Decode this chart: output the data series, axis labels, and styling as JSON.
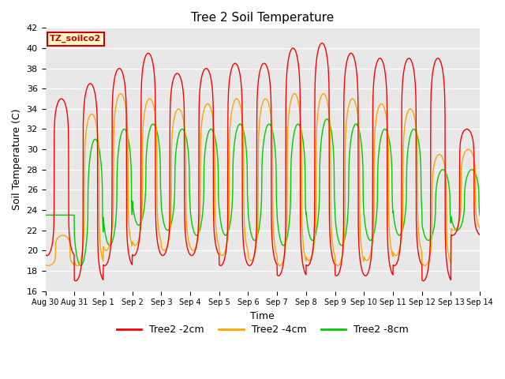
{
  "title": "Tree 2 Soil Temperature",
  "xlabel": "Time",
  "ylabel": "Soil Temperature (C)",
  "ylim": [
    16,
    42
  ],
  "yticks": [
    16,
    18,
    20,
    22,
    24,
    26,
    28,
    30,
    32,
    34,
    36,
    38,
    40,
    42
  ],
  "bg_color": "#e8e8e8",
  "fig_color": "#ffffff",
  "label_2cm": "Tree2 -2cm",
  "label_4cm": "Tree2 -4cm",
  "label_8cm": "Tree2 -8cm",
  "color_2cm": "#ff0000",
  "color_4cm": "#ffa500",
  "color_8cm": "#00cc00",
  "annotation_text": "TZ_soilco2",
  "annotation_bg": "#ffffcc",
  "annotation_edge": "#cc0000",
  "x_tick_labels": [
    "Aug 30",
    "Aug 31",
    "Sep 1",
    "Sep 2",
    "Sep 3",
    "Sep 4",
    "Sep 5",
    "Sep 6",
    "Sep 7",
    "Sep 8",
    "Sep 9",
    "Sep 10",
    "Sep 11",
    "Sep 12",
    "Sep 13",
    "Sep 14"
  ],
  "num_days": 15,
  "points_per_day": 144,
  "peak_2cm": [
    35.0,
    36.5,
    38.0,
    39.5,
    37.5,
    38.0,
    38.5,
    38.5,
    40.0,
    40.5,
    39.5,
    39.0,
    39.0,
    39.0,
    32.0
  ],
  "trough_2cm": [
    19.5,
    17.0,
    18.5,
    19.5,
    19.5,
    19.5,
    18.5,
    18.5,
    17.5,
    18.5,
    17.5,
    17.5,
    18.5,
    17.0,
    21.5
  ],
  "peak_4cm": [
    21.5,
    33.5,
    35.5,
    35.0,
    34.0,
    34.5,
    35.0,
    35.0,
    35.5,
    35.5,
    35.0,
    34.5,
    34.0,
    29.5,
    30.0
  ],
  "trough_4cm": [
    18.5,
    18.5,
    20.0,
    20.5,
    20.0,
    20.0,
    19.5,
    19.0,
    18.5,
    19.0,
    18.5,
    19.0,
    19.5,
    18.5,
    22.0
  ],
  "peak_8cm": [
    23.5,
    31.0,
    32.0,
    32.5,
    32.0,
    32.0,
    32.5,
    32.5,
    32.5,
    33.0,
    32.5,
    32.0,
    32.0,
    28.0,
    28.0
  ],
  "trough_8cm": [
    23.5,
    18.5,
    20.5,
    22.5,
    22.0,
    21.5,
    21.5,
    21.0,
    20.5,
    21.0,
    20.5,
    21.0,
    21.5,
    21.0,
    22.0
  ],
  "phase_peak_2cm": 0.55,
  "phase_peak_4cm": 0.6,
  "phase_peak_8cm": 0.72,
  "sharpness_2cm": 6.0,
  "sharpness_4cm": 4.0,
  "sharpness_8cm": 2.5
}
